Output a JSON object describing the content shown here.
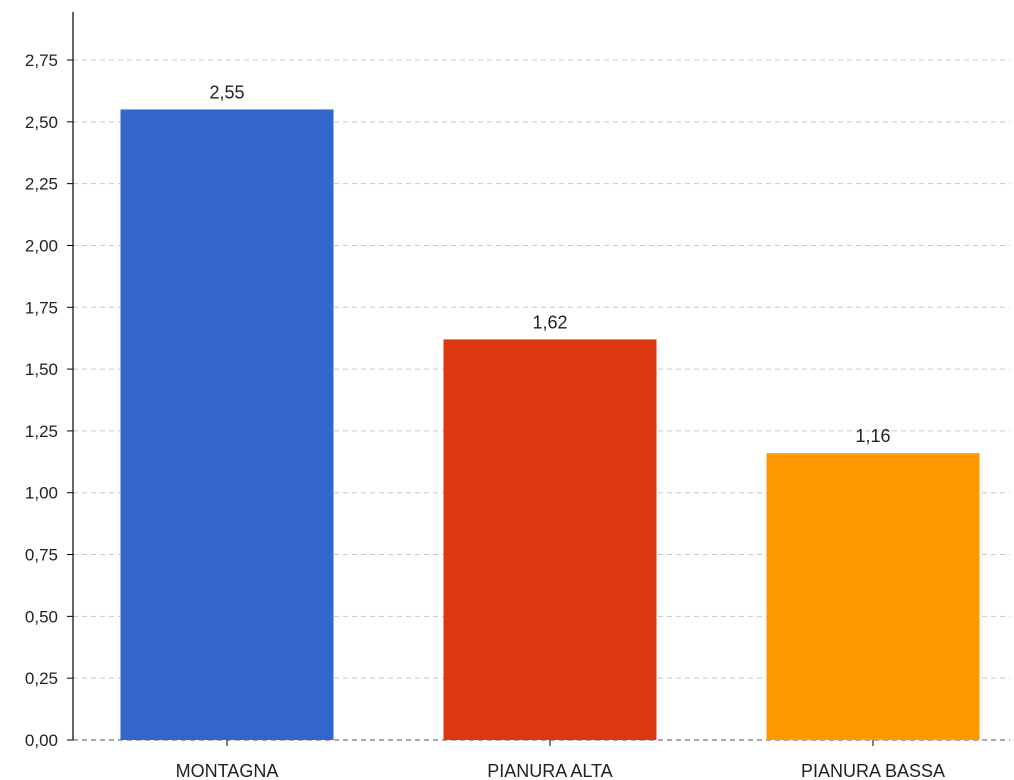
{
  "chart_data": {
    "type": "bar",
    "categories": [
      "MONTAGNA",
      "PIANURA ALTA",
      "PIANURA BASSA"
    ],
    "values": [
      2.55,
      1.62,
      1.16
    ],
    "data_labels": [
      "2,55",
      "1,62",
      "1,16"
    ],
    "colors": [
      "#3366cc",
      "#dc3912",
      "#ff9900"
    ],
    "ylim": [
      0,
      2.75
    ],
    "yticks": [
      0,
      0.25,
      0.5,
      0.75,
      1.0,
      1.25,
      1.5,
      1.75,
      2.0,
      2.25,
      2.5,
      2.75
    ],
    "ytick_labels": [
      "0,00",
      "0,25",
      "0,50",
      "0,75",
      "1,00",
      "1,25",
      "1,50",
      "1,75",
      "2,00",
      "2,25",
      "2,50",
      "2,75"
    ],
    "grid": true,
    "title": "",
    "xlabel": "",
    "ylabel": ""
  }
}
